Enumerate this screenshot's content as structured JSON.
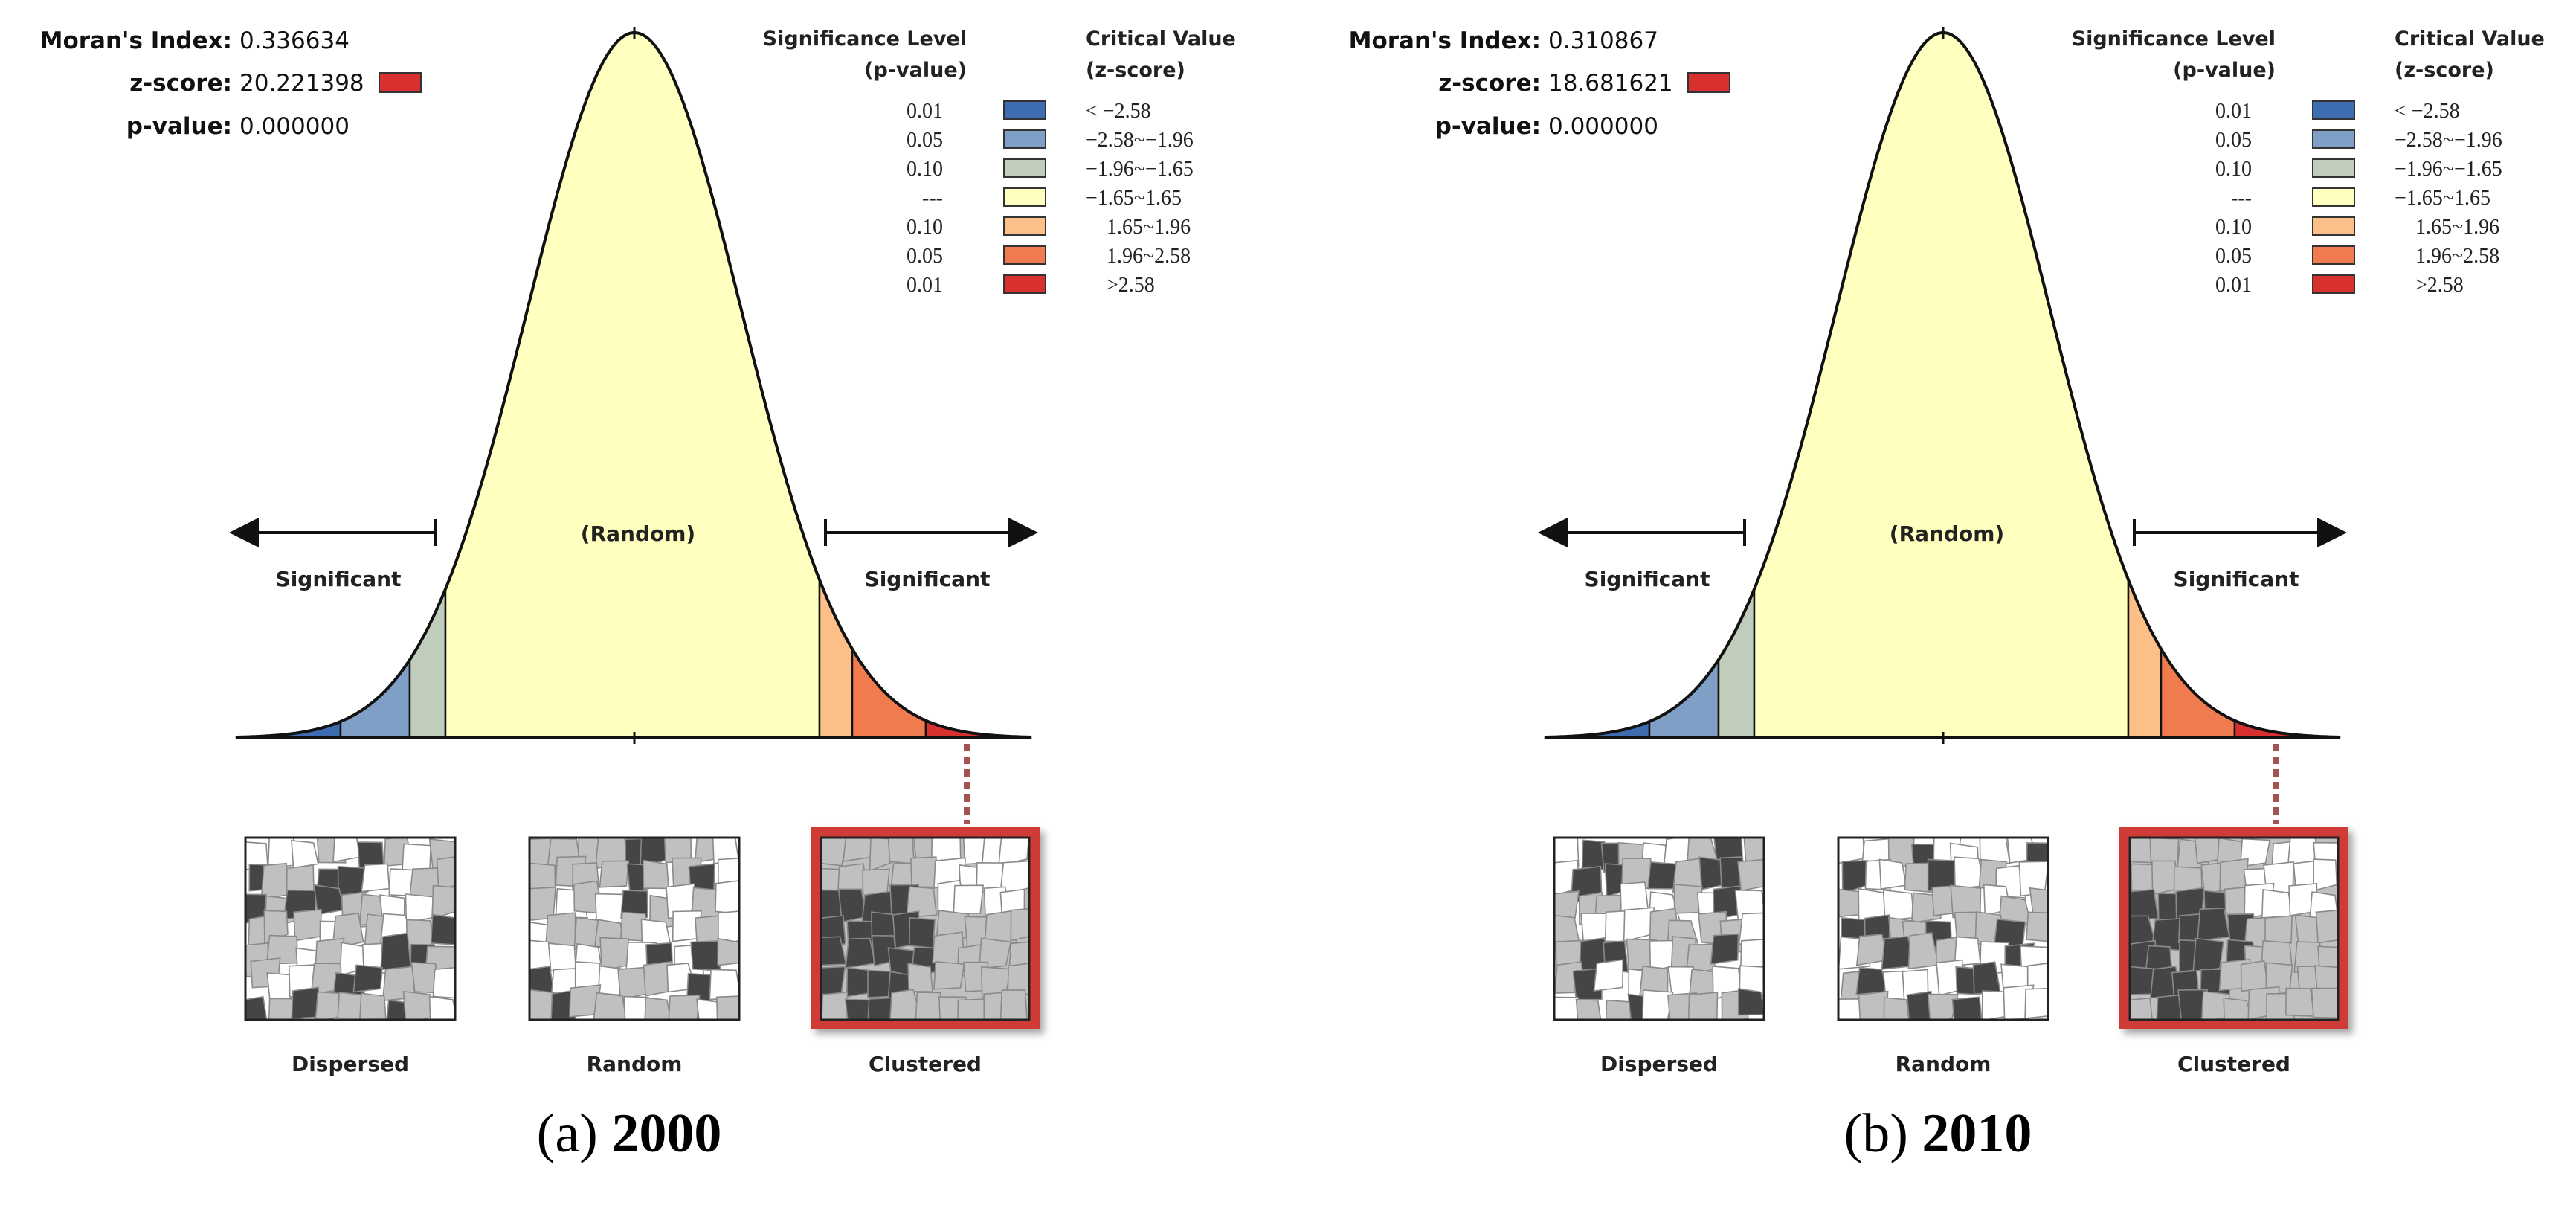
{
  "colors": {
    "sig_neg_01": "#3d6cb0",
    "sig_neg_05": "#7f9fc6",
    "sig_neg_10": "#c0cdbb",
    "random": "#ffffbf",
    "sig_pos_10": "#fbbf87",
    "sig_pos_05": "#ef7b4e",
    "sig_pos_01": "#d7302f",
    "cluster_frame": "#cf3b35",
    "leader": "#a3544f",
    "map_dark": "#454545",
    "map_mid": "#c0c0c0",
    "map_light": "#ffffff"
  },
  "panels": [
    {
      "caption_letter": "(a)",
      "caption_year": "2000",
      "stats": {
        "morans_label": "Moran's Index:",
        "morans_value": "0.336634",
        "z_label": "z-score:",
        "z_value": "20.221398",
        "p_label": "p-value:",
        "p_value": "0.000000"
      },
      "legend": {
        "sig_title_1": "Significance Level",
        "sig_title_2": "(p-value)",
        "crit_title_1": "Critical Value",
        "crit_title_2": "(z-score)",
        "rows": [
          {
            "p": "0.01",
            "z": "< −2.58",
            "color": "sig_neg_01"
          },
          {
            "p": "0.05",
            "z": "−2.58~−1.96",
            "color": "sig_neg_05"
          },
          {
            "p": "0.10",
            "z": "−1.96~−1.65",
            "color": "sig_neg_10"
          },
          {
            "p": "---",
            "z": "−1.65~1.65",
            "color": "random"
          },
          {
            "p": "0.10",
            "z": "1.65~1.96",
            "color": "sig_pos_10"
          },
          {
            "p": "0.05",
            "z": "1.96~2.58",
            "color": "sig_pos_05"
          },
          {
            "p": "0.01",
            "z": ">2.58",
            "color": "sig_pos_01"
          }
        ]
      },
      "curve": {
        "random_label": "(Random)",
        "left_sig": "Significant",
        "right_sig": "Significant"
      },
      "maps": [
        "Dispersed",
        "Random",
        "Clustered"
      ],
      "highlighted_map": "Clustered"
    },
    {
      "caption_letter": "(b)",
      "caption_year": "2010",
      "stats": {
        "morans_label": "Moran's Index:",
        "morans_value": "0.310867",
        "z_label": "z-score:",
        "z_value": "18.681621",
        "p_label": "p-value:",
        "p_value": "0.000000"
      },
      "legend": {
        "sig_title_1": "Significance Level",
        "sig_title_2": "(p-value)",
        "crit_title_1": "Critical Value",
        "crit_title_2": "(z-score)",
        "rows": [
          {
            "p": "0.01",
            "z": "< −2.58",
            "color": "sig_neg_01"
          },
          {
            "p": "0.05",
            "z": "−2.58~−1.96",
            "color": "sig_neg_05"
          },
          {
            "p": "0.10",
            "z": "−1.96~−1.65",
            "color": "sig_neg_10"
          },
          {
            "p": "---",
            "z": "−1.65~1.65",
            "color": "random"
          },
          {
            "p": "0.10",
            "z": "1.65~1.96",
            "color": "sig_pos_10"
          },
          {
            "p": "0.05",
            "z": "1.96~2.58",
            "color": "sig_pos_05"
          },
          {
            "p": "0.01",
            "z": ">2.58",
            "color": "sig_pos_01"
          }
        ]
      },
      "curve": {
        "random_label": "(Random)",
        "left_sig": "Significant",
        "right_sig": "Significant"
      },
      "maps": [
        "Dispersed",
        "Random",
        "Clustered"
      ],
      "highlighted_map": "Clustered"
    }
  ]
}
